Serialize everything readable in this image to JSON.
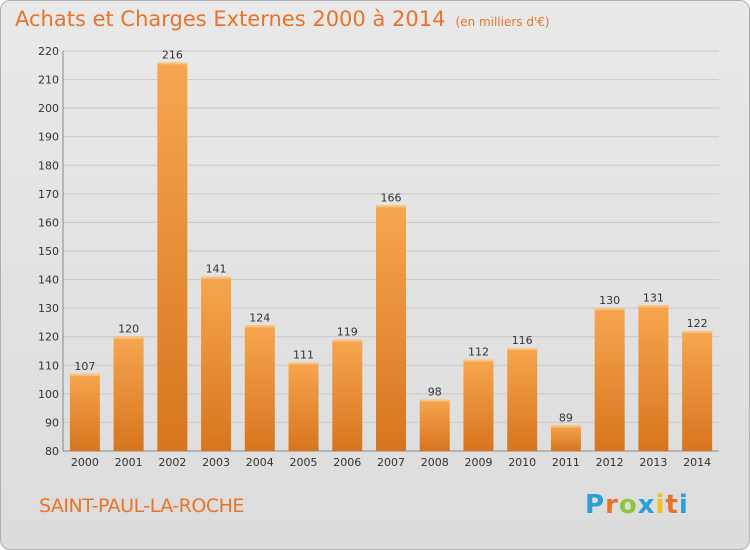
{
  "header": {
    "title": "Achats et Charges Externes 2000 à 2014",
    "subtitle": "(en milliers d'€)"
  },
  "footer": {
    "commune": "SAINT-PAUL-LA-ROCHE",
    "logo_text": "Proxiti"
  },
  "colors": {
    "title": "#e8742a",
    "bar_light": "#f6a64f",
    "bar_dark": "#d7751e",
    "grid": "#c8c8c8"
  },
  "chart_data": {
    "type": "bar",
    "categories": [
      "2000",
      "2001",
      "2002",
      "2003",
      "2004",
      "2005",
      "2006",
      "2007",
      "2008",
      "2009",
      "2010",
      "2011",
      "2012",
      "2013",
      "2014"
    ],
    "values": [
      107,
      120,
      216,
      141,
      124,
      111,
      119,
      166,
      98,
      112,
      116,
      89,
      130,
      131,
      122
    ],
    "ylim": [
      80,
      220
    ],
    "yticks": [
      80,
      90,
      100,
      110,
      120,
      130,
      140,
      150,
      160,
      170,
      180,
      190,
      200,
      210,
      220
    ],
    "title": "Achats et Charges Externes 2000 à 2014",
    "subtitle": "(en milliers d'€)",
    "grid": true
  }
}
